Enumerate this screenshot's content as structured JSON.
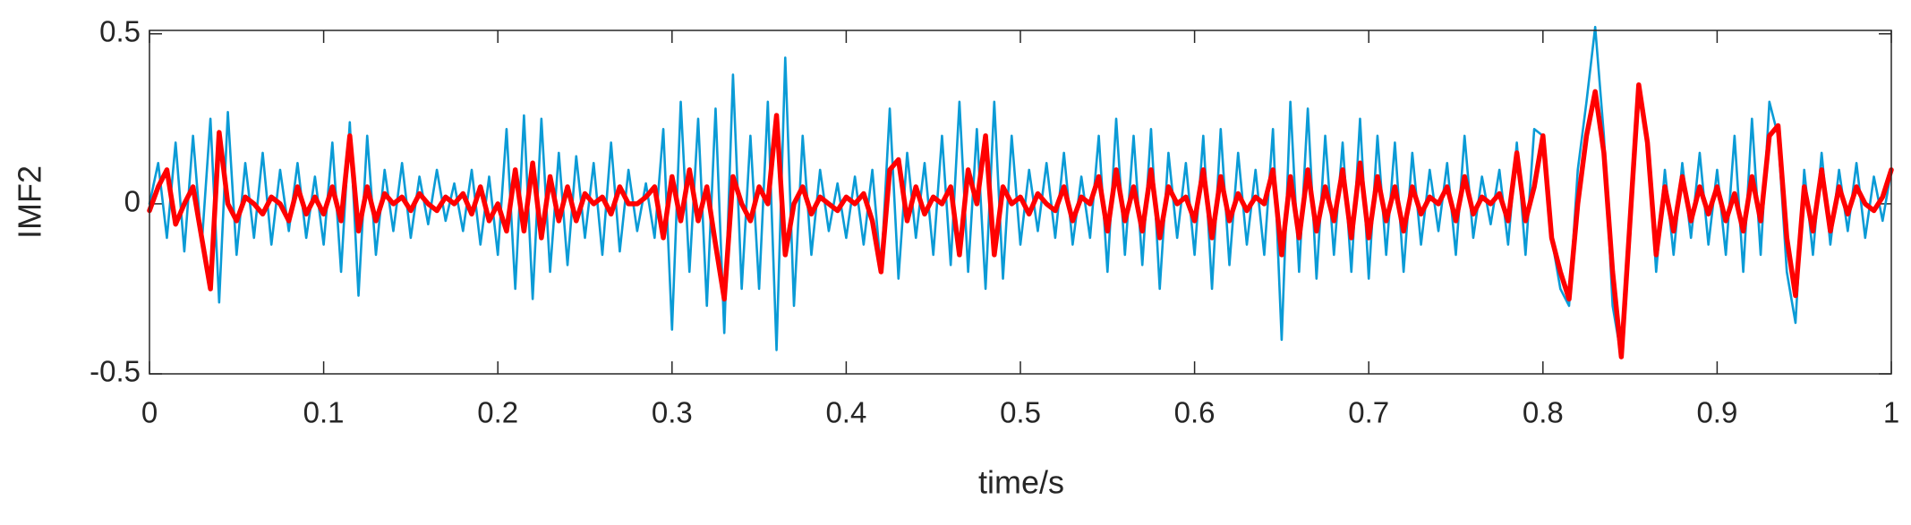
{
  "chart_data": {
    "type": "line",
    "xlabel": "time/s",
    "ylabel": "IMF2",
    "xlim": [
      0,
      1
    ],
    "ylim": [
      -0.5,
      0.51
    ],
    "xticks": [
      0,
      0.1,
      0.2,
      0.3,
      0.4,
      0.5,
      0.6,
      0.7,
      0.8,
      0.9,
      1
    ],
    "yticks": [
      -0.5,
      0,
      0.5
    ],
    "grid": false,
    "x": [
      0,
      0.005,
      0.01,
      0.015,
      0.02,
      0.025,
      0.03,
      0.035,
      0.04,
      0.045,
      0.05,
      0.055,
      0.06,
      0.065,
      0.07,
      0.075,
      0.08,
      0.085,
      0.09,
      0.095,
      0.1,
      0.105,
      0.11,
      0.115,
      0.12,
      0.125,
      0.13,
      0.135,
      0.14,
      0.145,
      0.15,
      0.155,
      0.16,
      0.165,
      0.17,
      0.175,
      0.18,
      0.185,
      0.19,
      0.195,
      0.2,
      0.205,
      0.21,
      0.215,
      0.22,
      0.225,
      0.23,
      0.235,
      0.24,
      0.245,
      0.25,
      0.255,
      0.26,
      0.265,
      0.27,
      0.275,
      0.28,
      0.285,
      0.29,
      0.295,
      0.3,
      0.305,
      0.31,
      0.315,
      0.32,
      0.325,
      0.33,
      0.335,
      0.34,
      0.345,
      0.35,
      0.355,
      0.36,
      0.365,
      0.37,
      0.375,
      0.38,
      0.385,
      0.39,
      0.395,
      0.4,
      0.405,
      0.41,
      0.415,
      0.42,
      0.425,
      0.43,
      0.435,
      0.44,
      0.445,
      0.45,
      0.455,
      0.46,
      0.465,
      0.47,
      0.475,
      0.48,
      0.485,
      0.49,
      0.495,
      0.5,
      0.505,
      0.51,
      0.515,
      0.52,
      0.525,
      0.53,
      0.535,
      0.54,
      0.545,
      0.55,
      0.555,
      0.56,
      0.565,
      0.57,
      0.575,
      0.58,
      0.585,
      0.59,
      0.595,
      0.6,
      0.605,
      0.61,
      0.615,
      0.62,
      0.625,
      0.63,
      0.635,
      0.64,
      0.645,
      0.65,
      0.655,
      0.66,
      0.665,
      0.67,
      0.675,
      0.68,
      0.685,
      0.69,
      0.695,
      0.7,
      0.705,
      0.71,
      0.715,
      0.72,
      0.725,
      0.73,
      0.735,
      0.74,
      0.745,
      0.75,
      0.755,
      0.76,
      0.765,
      0.77,
      0.775,
      0.78,
      0.785,
      0.79,
      0.795,
      0.8,
      0.805,
      0.81,
      0.815,
      0.82,
      0.825,
      0.83,
      0.835,
      0.84,
      0.845,
      0.85,
      0.855,
      0.86,
      0.865,
      0.87,
      0.875,
      0.88,
      0.885,
      0.89,
      0.895,
      0.9,
      0.905,
      0.91,
      0.915,
      0.92,
      0.925,
      0.93,
      0.935,
      0.94,
      0.945,
      0.95,
      0.955,
      0.96,
      0.965,
      0.97,
      0.975,
      0.98,
      0.985,
      0.99,
      0.995,
      1
    ],
    "series": [
      {
        "color": "#0a9bd6",
        "width": 2.6,
        "values": [
          0,
          0.12,
          -0.1,
          0.18,
          -0.14,
          0.2,
          -0.12,
          0.25,
          -0.29,
          0.27,
          -0.15,
          0.12,
          -0.1,
          0.15,
          -0.12,
          0.1,
          -0.08,
          0.12,
          -0.1,
          0.08,
          -0.12,
          0.18,
          -0.2,
          0.24,
          -0.27,
          0.2,
          -0.15,
          0.1,
          -0.08,
          0.12,
          -0.1,
          0.08,
          -0.06,
          0.1,
          -0.05,
          0.06,
          -0.08,
          0.1,
          -0.12,
          0.08,
          -0.15,
          0.22,
          -0.25,
          0.26,
          -0.28,
          0.25,
          -0.2,
          0.15,
          -0.18,
          0.14,
          -0.1,
          0.12,
          -0.15,
          0.18,
          -0.14,
          0.1,
          -0.08,
          0.06,
          -0.1,
          0.22,
          -0.37,
          0.3,
          -0.2,
          0.25,
          -0.3,
          0.28,
          -0.38,
          0.38,
          -0.25,
          0.2,
          -0.25,
          0.3,
          -0.43,
          0.43,
          -0.3,
          0.2,
          -0.15,
          0.1,
          -0.08,
          0.06,
          -0.1,
          0.08,
          -0.12,
          0.1,
          -0.2,
          0.28,
          -0.22,
          0.15,
          -0.1,
          0.12,
          -0.15,
          0.2,
          -0.18,
          0.3,
          -0.2,
          0.22,
          -0.25,
          0.3,
          -0.22,
          0.2,
          -0.12,
          0.1,
          -0.08,
          0.12,
          -0.1,
          0.15,
          -0.12,
          0.08,
          -0.1,
          0.2,
          -0.2,
          0.25,
          -0.15,
          0.2,
          -0.18,
          0.22,
          -0.25,
          0.15,
          -0.1,
          0.12,
          -0.15,
          0.2,
          -0.25,
          0.22,
          -0.18,
          0.15,
          -0.12,
          0.1,
          -0.15,
          0.22,
          -0.4,
          0.3,
          -0.2,
          0.28,
          -0.22,
          0.2,
          -0.15,
          0.18,
          -0.2,
          0.25,
          -0.22,
          0.2,
          -0.15,
          0.18,
          -0.2,
          0.15,
          -0.12,
          0.1,
          -0.08,
          0.12,
          -0.15,
          0.2,
          -0.1,
          0.08,
          -0.06,
          0.1,
          -0.12,
          0.18,
          -0.15,
          0.22,
          0.2,
          -0.1,
          -0.25,
          -0.3,
          0.1,
          0.3,
          0.52,
          0.2,
          -0.3,
          -0.45,
          -0.1,
          0.35,
          0.2,
          -0.2,
          0.1,
          -0.15,
          0.12,
          -0.1,
          0.15,
          -0.12,
          0.1,
          -0.15,
          0.2,
          -0.2,
          0.25,
          -0.15,
          0.3,
          0.2,
          -0.2,
          -0.35,
          0.1,
          -0.15,
          0.15,
          -0.12,
          0.1,
          -0.08,
          0.12,
          -0.1,
          0.08,
          -0.05,
          0.1
        ]
      },
      {
        "color": "#ff0000",
        "width": 5.5,
        "values": [
          -0.02,
          0.05,
          0.1,
          -0.06,
          0,
          0.05,
          -0.1,
          -0.25,
          0.21,
          0,
          -0.05,
          0.02,
          0,
          -0.03,
          0.02,
          0,
          -0.05,
          0.05,
          -0.03,
          0.02,
          -0.03,
          0.05,
          -0.05,
          0.2,
          -0.08,
          0.05,
          -0.05,
          0.03,
          0,
          0.02,
          -0.02,
          0.03,
          0,
          -0.02,
          0.02,
          0,
          0.03,
          -0.03,
          0.05,
          -0.05,
          0,
          -0.08,
          0.1,
          -0.08,
          0.12,
          -0.1,
          0.08,
          -0.05,
          0.05,
          -0.05,
          0.03,
          0,
          0.02,
          -0.03,
          0.05,
          0,
          0,
          0.02,
          0.05,
          -0.1,
          0.08,
          -0.05,
          0.1,
          -0.05,
          0.05,
          -0.12,
          -0.28,
          0.08,
          0,
          -0.05,
          0.05,
          0,
          0.26,
          -0.15,
          0,
          0.05,
          -0.03,
          0.02,
          0,
          -0.02,
          0.02,
          0,
          0.03,
          -0.05,
          -0.2,
          0.1,
          0.13,
          -0.05,
          0.05,
          -0.03,
          0.02,
          0,
          0.05,
          -0.15,
          0.1,
          0,
          0.2,
          -0.15,
          0.05,
          0,
          0.02,
          -0.03,
          0.03,
          0,
          -0.02,
          0.05,
          -0.05,
          0.02,
          0,
          0.08,
          -0.08,
          0.1,
          -0.05,
          0.05,
          -0.08,
          0.1,
          -0.1,
          0.05,
          0,
          0.02,
          -0.05,
          0.1,
          -0.1,
          0.08,
          -0.05,
          0.03,
          -0.02,
          0.02,
          0,
          0.1,
          -0.15,
          0.08,
          -0.1,
          0.1,
          -0.08,
          0.05,
          -0.05,
          0.1,
          -0.1,
          0.12,
          -0.1,
          0.08,
          -0.05,
          0.05,
          -0.08,
          0.05,
          -0.03,
          0.02,
          0,
          0.05,
          -0.05,
          0.08,
          -0.03,
          0.02,
          0,
          0.03,
          -0.05,
          0.15,
          -0.05,
          0.05,
          0.2,
          -0.1,
          -0.2,
          -0.28,
          0,
          0.2,
          0.33,
          0.15,
          -0.2,
          -0.45,
          -0.05,
          0.35,
          0.18,
          -0.15,
          0.05,
          -0.08,
          0.08,
          -0.05,
          0.05,
          -0.03,
          0.05,
          -0.05,
          0.03,
          -0.08,
          0.08,
          -0.05,
          0.2,
          0.23,
          -0.1,
          -0.27,
          0.05,
          -0.08,
          0.1,
          -0.08,
          0.05,
          -0.03,
          0.05,
          0,
          -0.02,
          0.02,
          0.1
        ]
      }
    ]
  }
}
